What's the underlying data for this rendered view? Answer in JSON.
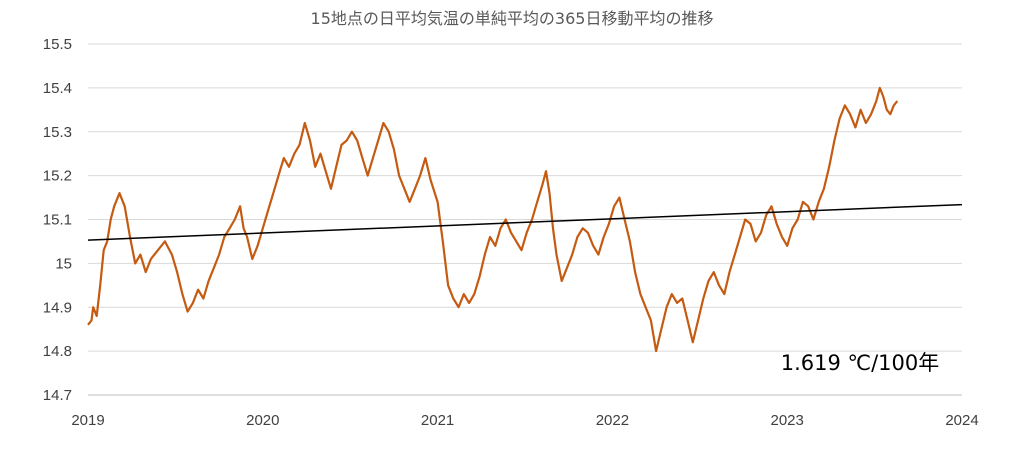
{
  "chart_data": {
    "type": "line",
    "title": "15地点の日平均気温の単純平均の365日移動平均の推移",
    "xlabel": "",
    "ylabel": "",
    "xlim": [
      2019,
      2024
    ],
    "ylim": [
      14.7,
      15.5
    ],
    "x_ticks": [
      "2019",
      "2020",
      "2021",
      "2022",
      "2023",
      "2024"
    ],
    "y_ticks": [
      "14.7",
      "14.8",
      "14.9",
      "15",
      "15.1",
      "15.2",
      "15.3",
      "15.4",
      "15.5"
    ],
    "grid": true,
    "legend": "none",
    "annotation": "1.619 ℃/100年",
    "colors": {
      "series": "#c55a11",
      "trend": "#000000",
      "grid": "#d9d9d9"
    },
    "series": [
      {
        "values": [
          [
            2019.0,
            14.86
          ],
          [
            2019.02,
            14.87
          ],
          [
            2019.03,
            14.9
          ],
          [
            2019.05,
            14.88
          ],
          [
            2019.07,
            14.95
          ],
          [
            2019.09,
            15.03
          ],
          [
            2019.11,
            15.05
          ],
          [
            2019.13,
            15.1
          ],
          [
            2019.15,
            15.13
          ],
          [
            2019.18,
            15.16
          ],
          [
            2019.21,
            15.13
          ],
          [
            2019.24,
            15.06
          ],
          [
            2019.27,
            15.0
          ],
          [
            2019.3,
            15.02
          ],
          [
            2019.33,
            14.98
          ],
          [
            2019.36,
            15.01
          ],
          [
            2019.4,
            15.03
          ],
          [
            2019.44,
            15.05
          ],
          [
            2019.48,
            15.02
          ],
          [
            2019.51,
            14.98
          ],
          [
            2019.54,
            14.93
          ],
          [
            2019.57,
            14.89
          ],
          [
            2019.6,
            14.91
          ],
          [
            2019.63,
            14.94
          ],
          [
            2019.66,
            14.92
          ],
          [
            2019.69,
            14.96
          ],
          [
            2019.72,
            14.99
          ],
          [
            2019.75,
            15.02
          ],
          [
            2019.78,
            15.06
          ],
          [
            2019.81,
            15.08
          ],
          [
            2019.84,
            15.1
          ],
          [
            2019.87,
            15.13
          ],
          [
            2019.89,
            15.08
          ],
          [
            2019.91,
            15.06
          ],
          [
            2019.94,
            15.01
          ],
          [
            2019.97,
            15.04
          ],
          [
            2020.0,
            15.08
          ],
          [
            2020.03,
            15.12
          ],
          [
            2020.06,
            15.16
          ],
          [
            2020.09,
            15.2
          ],
          [
            2020.12,
            15.24
          ],
          [
            2020.15,
            15.22
          ],
          [
            2020.18,
            15.25
          ],
          [
            2020.21,
            15.27
          ],
          [
            2020.24,
            15.32
          ],
          [
            2020.27,
            15.28
          ],
          [
            2020.3,
            15.22
          ],
          [
            2020.33,
            15.25
          ],
          [
            2020.36,
            15.21
          ],
          [
            2020.39,
            15.17
          ],
          [
            2020.42,
            15.22
          ],
          [
            2020.45,
            15.27
          ],
          [
            2020.48,
            15.28
          ],
          [
            2020.51,
            15.3
          ],
          [
            2020.54,
            15.28
          ],
          [
            2020.57,
            15.24
          ],
          [
            2020.6,
            15.2
          ],
          [
            2020.63,
            15.24
          ],
          [
            2020.66,
            15.28
          ],
          [
            2020.69,
            15.32
          ],
          [
            2020.72,
            15.3
          ],
          [
            2020.75,
            15.26
          ],
          [
            2020.78,
            15.2
          ],
          [
            2020.81,
            15.17
          ],
          [
            2020.84,
            15.14
          ],
          [
            2020.87,
            15.17
          ],
          [
            2020.9,
            15.2
          ],
          [
            2020.93,
            15.24
          ],
          [
            2020.96,
            15.19
          ],
          [
            2021.0,
            15.14
          ],
          [
            2021.03,
            15.05
          ],
          [
            2021.06,
            14.95
          ],
          [
            2021.09,
            14.92
          ],
          [
            2021.12,
            14.9
          ],
          [
            2021.15,
            14.93
          ],
          [
            2021.18,
            14.91
          ],
          [
            2021.21,
            14.93
          ],
          [
            2021.24,
            14.97
          ],
          [
            2021.27,
            15.02
          ],
          [
            2021.3,
            15.06
          ],
          [
            2021.33,
            15.04
          ],
          [
            2021.36,
            15.08
          ],
          [
            2021.39,
            15.1
          ],
          [
            2021.42,
            15.07
          ],
          [
            2021.45,
            15.05
          ],
          [
            2021.48,
            15.03
          ],
          [
            2021.51,
            15.07
          ],
          [
            2021.54,
            15.1
          ],
          [
            2021.57,
            15.14
          ],
          [
            2021.6,
            15.18
          ],
          [
            2021.62,
            15.21
          ],
          [
            2021.64,
            15.16
          ],
          [
            2021.66,
            15.08
          ],
          [
            2021.68,
            15.02
          ],
          [
            2021.71,
            14.96
          ],
          [
            2021.74,
            14.99
          ],
          [
            2021.77,
            15.02
          ],
          [
            2021.8,
            15.06
          ],
          [
            2021.83,
            15.08
          ],
          [
            2021.86,
            15.07
          ],
          [
            2021.89,
            15.04
          ],
          [
            2021.92,
            15.02
          ],
          [
            2021.95,
            15.06
          ],
          [
            2021.98,
            15.09
          ],
          [
            2022.01,
            15.13
          ],
          [
            2022.04,
            15.15
          ],
          [
            2022.07,
            15.1
          ],
          [
            2022.1,
            15.05
          ],
          [
            2022.13,
            14.98
          ],
          [
            2022.16,
            14.93
          ],
          [
            2022.19,
            14.9
          ],
          [
            2022.22,
            14.87
          ],
          [
            2022.25,
            14.8
          ],
          [
            2022.28,
            14.85
          ],
          [
            2022.31,
            14.9
          ],
          [
            2022.34,
            14.93
          ],
          [
            2022.37,
            14.91
          ],
          [
            2022.4,
            14.92
          ],
          [
            2022.43,
            14.87
          ],
          [
            2022.46,
            14.82
          ],
          [
            2022.49,
            14.87
          ],
          [
            2022.52,
            14.92
          ],
          [
            2022.55,
            14.96
          ],
          [
            2022.58,
            14.98
          ],
          [
            2022.61,
            14.95
          ],
          [
            2022.64,
            14.93
          ],
          [
            2022.67,
            14.98
          ],
          [
            2022.7,
            15.02
          ],
          [
            2022.73,
            15.06
          ],
          [
            2022.76,
            15.1
          ],
          [
            2022.79,
            15.09
          ],
          [
            2022.82,
            15.05
          ],
          [
            2022.85,
            15.07
          ],
          [
            2022.88,
            15.11
          ],
          [
            2022.91,
            15.13
          ],
          [
            2022.94,
            15.09
          ],
          [
            2022.97,
            15.06
          ],
          [
            2023.0,
            15.04
          ],
          [
            2023.03,
            15.08
          ],
          [
            2023.06,
            15.1
          ],
          [
            2023.09,
            15.14
          ],
          [
            2023.12,
            15.13
          ],
          [
            2023.15,
            15.1
          ],
          [
            2023.18,
            15.14
          ],
          [
            2023.21,
            15.17
          ],
          [
            2023.24,
            15.22
          ],
          [
            2023.27,
            15.28
          ],
          [
            2023.3,
            15.33
          ],
          [
            2023.33,
            15.36
          ],
          [
            2023.36,
            15.34
          ],
          [
            2023.39,
            15.31
          ],
          [
            2023.42,
            15.35
          ],
          [
            2023.45,
            15.32
          ],
          [
            2023.48,
            15.34
          ],
          [
            2023.51,
            15.37
          ],
          [
            2023.53,
            15.4
          ],
          [
            2023.55,
            15.38
          ],
          [
            2023.57,
            15.35
          ],
          [
            2023.59,
            15.34
          ],
          [
            2023.61,
            15.36
          ],
          [
            2023.63,
            15.37
          ]
        ]
      }
    ],
    "trendline": {
      "x": [
        2019,
        2024
      ],
      "y": [
        15.053,
        15.134
      ]
    }
  }
}
